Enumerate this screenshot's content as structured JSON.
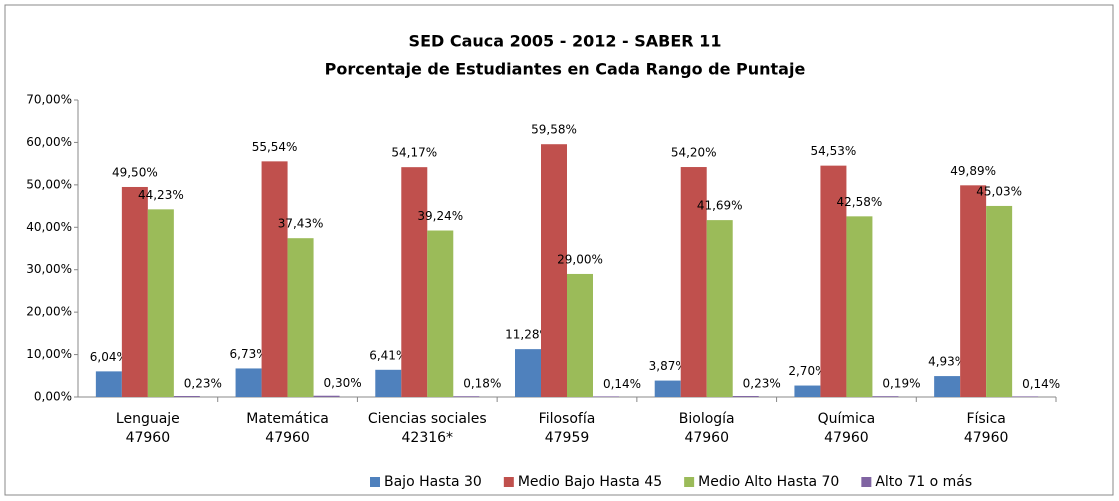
{
  "chart_data": {
    "type": "bar",
    "title": "SED Cauca 2005 - 2012 - SABER 11",
    "subtitle": "Porcentaje de Estudiantes en Cada Rango de Puntaje",
    "categories": [
      [
        "Lenguaje",
        "47960"
      ],
      [
        "Matemática",
        "47960"
      ],
      [
        "Ciencias sociales",
        "42316*"
      ],
      [
        "Filosofía",
        "47959"
      ],
      [
        "Biología",
        "47960"
      ],
      [
        "Química",
        "47960"
      ],
      [
        "Física",
        "47960"
      ]
    ],
    "series": [
      {
        "name": "Bajo Hasta 30",
        "color": "#4f81bd",
        "values": [
          6.04,
          6.73,
          6.41,
          11.28,
          3.87,
          2.7,
          4.93
        ],
        "value_labels": [
          "6,04%",
          "6,73%",
          "6,41%",
          "11,28%",
          "3,87%",
          "2,70%",
          "4,93%"
        ]
      },
      {
        "name": "Medio Bajo Hasta 45",
        "color": "#c0504d",
        "values": [
          49.5,
          55.54,
          54.17,
          59.58,
          54.2,
          54.53,
          49.89
        ],
        "value_labels": [
          "49,50%",
          "55,54%",
          "54,17%",
          "59,58%",
          "54,20%",
          "54,53%",
          "49,89%"
        ]
      },
      {
        "name": "Medio Alto Hasta 70",
        "color": "#9bbb59",
        "values": [
          44.23,
          37.43,
          39.24,
          29.0,
          41.69,
          42.58,
          45.03
        ],
        "value_labels": [
          "44,23%",
          "37,43%",
          "39,24%",
          "29,00%",
          "41,69%",
          "42,58%",
          "45,03%"
        ]
      },
      {
        "name": "Alto 71 o más",
        "color": "#8064a2",
        "values": [
          0.23,
          0.3,
          0.18,
          0.14,
          0.23,
          0.19,
          0.14
        ],
        "value_labels": [
          "0,23%",
          "0,30%",
          "0,18%",
          "0,14%",
          "0,23%",
          "0,19%",
          "0,14%"
        ]
      }
    ],
    "ylim": [
      0,
      70
    ],
    "yticks": [
      {
        "value": 0,
        "label": "0,00%"
      },
      {
        "value": 10,
        "label": "10,00%"
      },
      {
        "value": 20,
        "label": "20,00%"
      },
      {
        "value": 30,
        "label": "30,00%"
      },
      {
        "value": 40,
        "label": "40,00%"
      },
      {
        "value": 50,
        "label": "50,00%"
      },
      {
        "value": 60,
        "label": "60,00%"
      },
      {
        "value": 70,
        "label": "70,00%"
      }
    ],
    "grid": false,
    "legend": "bottom"
  }
}
